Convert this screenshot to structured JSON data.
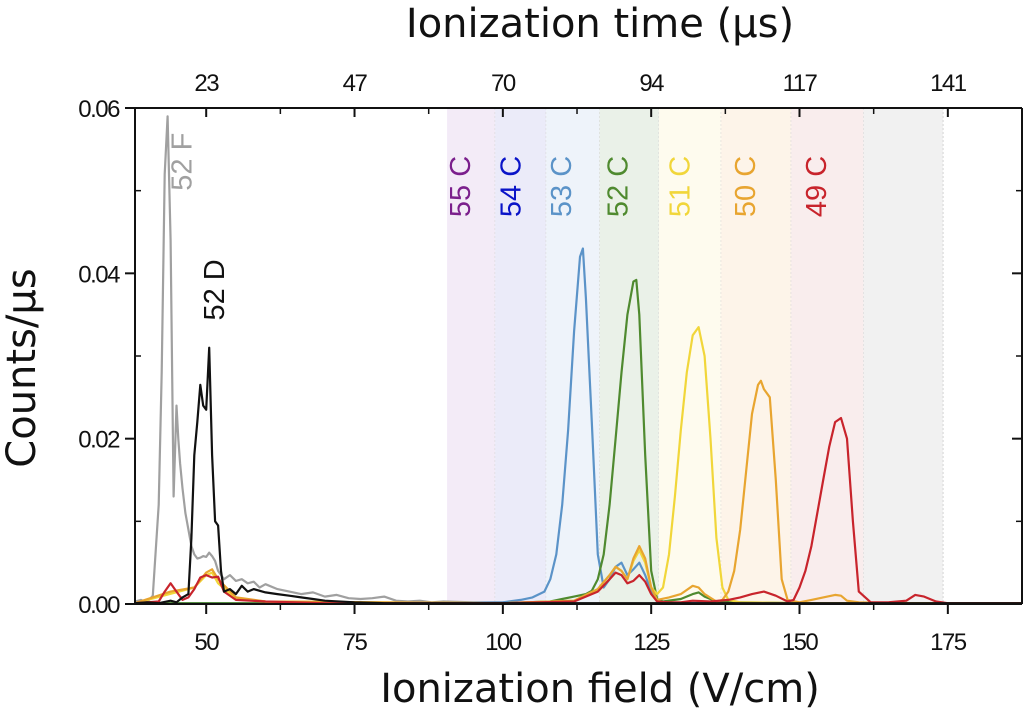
{
  "chart_data": {
    "type": "line",
    "title": "",
    "xlabel": "Ionization field (V/cm)",
    "ylabel": "Counts/µs",
    "top_xlabel": "Ionization time (µs)",
    "xlim": [
      38,
      187.5
    ],
    "ylim": [
      0,
      0.06
    ],
    "grid": false,
    "legend": "none",
    "x_ticks": [
      50,
      75,
      100,
      125,
      150,
      175
    ],
    "x_tick_labels": [
      "50",
      "75",
      "100",
      "125",
      "150",
      "175"
    ],
    "x_minor_ticks": [
      62.5,
      87.5,
      112.5,
      137.5,
      162.5
    ],
    "y_ticks": [
      0,
      0.02,
      0.04,
      0.06
    ],
    "y_tick_labels": [
      "0.00",
      "0.02",
      "0.04",
      "0.06"
    ],
    "y_minor_ticks": [
      0.01,
      0.03,
      0.05
    ],
    "top_x_ticks": [
      50,
      75,
      100,
      125,
      150,
      175
    ],
    "top_x_tick_labels": [
      "23",
      "47",
      "70",
      "94",
      "117",
      "141"
    ],
    "bands": [
      {
        "name": "55 C",
        "x0": 90.6,
        "x1": 98.7,
        "color": "#f3ebf7"
      },
      {
        "name": "54 C",
        "x0": 98.7,
        "x1": 107.3,
        "color": "#ebebf9"
      },
      {
        "name": "53 C",
        "x0": 107.3,
        "x1": 116.3,
        "color": "#eef3fa"
      },
      {
        "name": "52 C",
        "x0": 116.3,
        "x1": 126.3,
        "color": "#eaf1e8"
      },
      {
        "name": "51 C",
        "x0": 126.3,
        "x1": 136.8,
        "color": "#fefbee"
      },
      {
        "name": "50 C",
        "x0": 136.8,
        "x1": 148.6,
        "color": "#fdf4e9"
      },
      {
        "name": "49 C",
        "x0": 148.6,
        "x1": 160.8,
        "color": "#f9eded"
      },
      {
        "name": "",
        "x0": 160.8,
        "x1": 174.2,
        "color": "#f1f1f1"
      }
    ],
    "annotations": [
      {
        "text": "52 F",
        "x": 47.5,
        "y": 0.0535,
        "color": "#a0a0a0"
      },
      {
        "text": "52 D",
        "x": 53,
        "y": 0.038,
        "color": "#111111"
      },
      {
        "text": "55 C",
        "x": 94.5,
        "y": 0.0505,
        "color": "#7b1f8c"
      },
      {
        "text": "54 C",
        "x": 103,
        "y": 0.0505,
        "color": "#0a14c8"
      },
      {
        "text": "53 C",
        "x": 111.5,
        "y": 0.0505,
        "color": "#5b93c8"
      },
      {
        "text": "52 C",
        "x": 121,
        "y": 0.0505,
        "color": "#4f8a2f"
      },
      {
        "text": "51 C",
        "x": 131.5,
        "y": 0.0505,
        "color": "#f1d63a"
      },
      {
        "text": "50 C",
        "x": 142.5,
        "y": 0.0505,
        "color": "#e8a530"
      },
      {
        "text": "49 C",
        "x": 154.5,
        "y": 0.0505,
        "color": "#c8242c"
      }
    ],
    "series": [
      {
        "name": "52 F",
        "color": "#a0a0a0",
        "x": [
          38,
          39,
          40,
          41,
          42,
          42.5,
          43,
          43.5,
          44,
          44.5,
          45,
          45.3,
          45.6,
          46,
          46.5,
          47,
          47.5,
          48,
          48.5,
          49,
          49.5,
          50,
          50.5,
          51,
          51.5,
          52,
          53,
          54,
          55,
          56,
          57,
          58,
          59,
          60,
          62,
          64,
          66,
          68,
          70,
          72,
          74,
          76,
          78,
          80,
          82,
          84,
          86,
          88,
          90,
          95,
          100,
          110,
          120,
          130,
          140,
          150,
          160,
          170,
          180,
          187.5
        ],
        "y": [
          0.0003,
          0.0005,
          0.0002,
          0.001,
          0.012,
          0.028,
          0.052,
          0.059,
          0.044,
          0.013,
          0.024,
          0.02,
          0.017,
          0.014,
          0.011,
          0.009,
          0.007,
          0.006,
          0.0055,
          0.0056,
          0.0058,
          0.0057,
          0.0062,
          0.0058,
          0.0052,
          0.004,
          0.003,
          0.0035,
          0.0028,
          0.003,
          0.0025,
          0.0027,
          0.002,
          0.0024,
          0.0018,
          0.0015,
          0.0012,
          0.0014,
          0.0009,
          0.0011,
          0.0007,
          0.0006,
          0.0007,
          0.0009,
          0.0004,
          0.0003,
          0.0004,
          0.0002,
          0.0003,
          0.0002,
          0.0002,
          0.0001,
          0.0001,
          0.0001,
          0.0001,
          0.0001,
          0.0001,
          0.0001,
          0.0001,
          0.0001
        ]
      },
      {
        "name": "52 D",
        "color": "#111111",
        "x": [
          38,
          40,
          42,
          44,
          45,
          46,
          47,
          47.5,
          48,
          48.5,
          49,
          49.5,
          50,
          50.5,
          51,
          51.5,
          52,
          52.5,
          53,
          54,
          55,
          56,
          57,
          58,
          60,
          62,
          64,
          66,
          68,
          70,
          75,
          80,
          90,
          100,
          110,
          120,
          130,
          140,
          150,
          160,
          170,
          180,
          187.5
        ],
        "y": [
          0.0001,
          0.0002,
          0.0001,
          0.0004,
          0.0002,
          0.0008,
          0.0012,
          0.008,
          0.018,
          0.022,
          0.0265,
          0.024,
          0.0235,
          0.031,
          0.018,
          0.01,
          0.0095,
          0.004,
          0.0015,
          0.0018,
          0.0012,
          0.0022,
          0.0015,
          0.0018,
          0.0014,
          0.0012,
          0.001,
          0.0008,
          0.0006,
          0.0004,
          0.0002,
          0.0001,
          0.0001,
          0.0001,
          0.0001,
          0.0001,
          0.0001,
          0.0001,
          0.0001,
          0.0001,
          0.0001,
          0.0001,
          0.0001
        ]
      },
      {
        "name": "53 C",
        "color": "#5b93c8",
        "x": [
          38,
          90,
          100,
          103,
          105,
          107,
          108,
          109,
          110,
          111,
          112,
          113,
          113.5,
          114,
          115,
          116,
          117,
          118,
          119,
          120,
          121,
          122,
          123,
          124,
          125,
          126,
          128,
          135,
          150,
          187.5
        ],
        "y": [
          0.0001,
          0.0001,
          0.0002,
          0.0005,
          0.0008,
          0.0015,
          0.003,
          0.006,
          0.012,
          0.021,
          0.033,
          0.042,
          0.043,
          0.037,
          0.022,
          0.006,
          0.002,
          0.003,
          0.0045,
          0.005,
          0.0035,
          0.0042,
          0.005,
          0.0035,
          0.0015,
          0.0003,
          0.0002,
          0.0001,
          0.0001,
          0.0001
        ]
      },
      {
        "name": "52 C",
        "color": "#4f8a2f",
        "x": [
          38,
          100,
          108,
          110,
          112,
          114,
          115,
          116,
          117,
          118,
          119,
          120,
          121,
          122,
          122.5,
          123,
          124,
          125,
          126,
          127,
          130,
          132,
          133,
          134,
          136,
          140,
          150,
          187.5
        ],
        "y": [
          0.0001,
          0.0001,
          0.0003,
          0.0006,
          0.0009,
          0.0012,
          0.0016,
          0.003,
          0.006,
          0.012,
          0.02,
          0.028,
          0.035,
          0.039,
          0.0392,
          0.035,
          0.018,
          0.004,
          0.0006,
          0.0003,
          0.0006,
          0.0012,
          0.0014,
          0.0009,
          0.0003,
          0.0002,
          0.0001,
          0.0001
        ]
      },
      {
        "name": "51 C",
        "color": "#f1d63a",
        "x": [
          38,
          48,
          50,
          51,
          52,
          55,
          60,
          100,
          112,
          116,
          118,
          119,
          120,
          121,
          122,
          123,
          124,
          125,
          126,
          127,
          128,
          129,
          130,
          131,
          132,
          133,
          134,
          135,
          136,
          137,
          138,
          140,
          150,
          187.5
        ],
        "y": [
          0.0001,
          0.002,
          0.0035,
          0.0038,
          0.0025,
          0.0006,
          0.0003,
          0.0001,
          0.0004,
          0.0018,
          0.0035,
          0.0045,
          0.004,
          0.003,
          0.0052,
          0.0065,
          0.005,
          0.002,
          0.0012,
          0.002,
          0.006,
          0.013,
          0.021,
          0.028,
          0.0325,
          0.0335,
          0.03,
          0.02,
          0.008,
          0.002,
          0.0005,
          0.0002,
          0.0001,
          0.0001
        ]
      },
      {
        "name": "50 C",
        "color": "#e8a530",
        "x": [
          38,
          44,
          48,
          50,
          51,
          52,
          55,
          60,
          100,
          112,
          116,
          118,
          119,
          120,
          121,
          122,
          123,
          124,
          125,
          126,
          128,
          130,
          132,
          133,
          134,
          136,
          137,
          138,
          139,
          140,
          141,
          142,
          143,
          143.5,
          144,
          145,
          146,
          147,
          148,
          150,
          152,
          154,
          156,
          157,
          158,
          160,
          170,
          187.5
        ],
        "y": [
          0.0001,
          0.0015,
          0.002,
          0.0038,
          0.0042,
          0.003,
          0.0008,
          0.0003,
          0.0001,
          0.0004,
          0.0018,
          0.0035,
          0.0045,
          0.004,
          0.003,
          0.0055,
          0.007,
          0.0055,
          0.002,
          0.0005,
          0.0008,
          0.0012,
          0.0022,
          0.002,
          0.0012,
          0.0003,
          0.0005,
          0.0015,
          0.004,
          0.009,
          0.016,
          0.023,
          0.0265,
          0.027,
          0.026,
          0.025,
          0.015,
          0.003,
          0.0005,
          0.0002,
          0.0005,
          0.0008,
          0.0011,
          0.001,
          0.0004,
          0.0002,
          0.0001,
          0.0001
        ]
      },
      {
        "name": "49 C",
        "color": "#c8242c",
        "x": [
          38,
          42,
          43,
          44,
          45,
          46,
          47,
          48,
          49,
          50,
          51,
          52,
          53,
          55,
          60,
          70,
          100,
          112,
          116,
          118,
          119,
          120,
          121,
          122,
          123,
          124,
          125,
          126,
          128,
          130,
          132,
          135,
          138,
          140,
          142,
          144,
          146,
          148,
          149,
          150,
          151,
          152,
          153,
          154,
          155,
          156,
          157,
          158,
          159,
          160,
          162,
          165,
          168,
          169.5,
          171,
          173,
          175,
          187.5
        ],
        "y": [
          0.0001,
          0.0003,
          0.0015,
          0.0025,
          0.0015,
          0.0005,
          0.0008,
          0.0018,
          0.0032,
          0.0035,
          0.0032,
          0.0033,
          0.0015,
          0.0005,
          0.0003,
          0.0001,
          0.0001,
          0.0003,
          0.0015,
          0.003,
          0.0038,
          0.0035,
          0.0025,
          0.0028,
          0.0035,
          0.0027,
          0.0012,
          0.0003,
          0.0002,
          0.0002,
          0.0004,
          0.0003,
          0.0005,
          0.0008,
          0.0012,
          0.0015,
          0.001,
          0.0003,
          0.0005,
          0.002,
          0.004,
          0.007,
          0.011,
          0.015,
          0.019,
          0.022,
          0.0225,
          0.02,
          0.01,
          0.0015,
          0.0002,
          0.0002,
          0.0004,
          0.0011,
          0.0009,
          0.0003,
          0.0001,
          0.0001
        ]
      }
    ]
  }
}
